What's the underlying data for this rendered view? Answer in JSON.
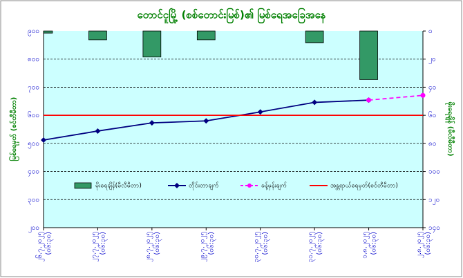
{
  "chart_data": {
    "type": "combo",
    "title": "တောင်ငူမြို့ (စစ်တောင်းမြစ်)၏ မြစ်ရေအခြေအနေ",
    "ylabel": "မြစ်ရေမှတ် (စင်တီမီတာ)",
    "y2label": "မိုးရေချိန် (မီလီမီတာ)",
    "categories": [
      "၂၆.၇.၂၀၂၅",
      "၂၇.၇.၂၀၂၅",
      "၂၈.၇.၂၀၂၅",
      "၂၉.၇.၂၀၂၅",
      "၃၀.၇.၂၀၂၅",
      "၃၁.၇.၂၀၂၅",
      "၁.၈.၂၀၂၅",
      "၂.၈.၂၀၂၅"
    ],
    "category_time": "(၀၆:၃၀)",
    "ylim": [
      200,
      900
    ],
    "yticks": [
      {
        "value": 900,
        "label": "၉၀၀"
      },
      {
        "value": 800,
        "label": "၈၀၀"
      },
      {
        "value": 700,
        "label": "၇၀၀"
      },
      {
        "value": 600,
        "label": "၆၀၀"
      },
      {
        "value": 500,
        "label": "၅၀၀"
      },
      {
        "value": 400,
        "label": "၄၀၀"
      },
      {
        "value": 300,
        "label": "၃၀၀"
      },
      {
        "value": 200,
        "label": "၂၀၀"
      }
    ],
    "y2lim": [
      0,
      140
    ],
    "y2_inverted": true,
    "y2ticks": [
      {
        "value": 0,
        "label": "၀"
      },
      {
        "value": 20,
        "label": "၂၀"
      },
      {
        "value": 40,
        "label": "၄၀"
      },
      {
        "value": 60,
        "label": "၆၀"
      },
      {
        "value": 80,
        "label": "၈၀"
      },
      {
        "value": 100,
        "label": "၁၀၀"
      },
      {
        "value": 120,
        "label": "၁၂၀"
      },
      {
        "value": 140,
        "label": "၁၄၀"
      }
    ],
    "grid": true,
    "series": [
      {
        "name": "မိုးရေချိန်(မီလီမီတာ)",
        "type": "bar",
        "axis": "y2",
        "color": "#339966",
        "values": [
          1.5,
          6.3,
          18.5,
          6.3,
          0,
          8.3,
          34.6,
          0
        ]
      },
      {
        "name": "တိုင်းတာချက်",
        "type": "line",
        "color": "#000080",
        "marker": "diamond",
        "values": [
          512,
          544,
          573,
          580,
          612,
          646,
          654,
          null
        ]
      },
      {
        "name": "ခန့်မှန်းချက်",
        "type": "line",
        "color": "#ff00ff",
        "dashed": true,
        "marker": "dot",
        "values": [
          null,
          null,
          null,
          null,
          null,
          null,
          654,
          671
        ]
      },
      {
        "name": "အန္တရာယ်ရေမှတ်(စင်တီမီတာ)",
        "type": "line",
        "color": "#ff0000",
        "values": [
          600,
          600,
          600,
          600,
          600,
          600,
          600,
          600
        ]
      }
    ]
  }
}
